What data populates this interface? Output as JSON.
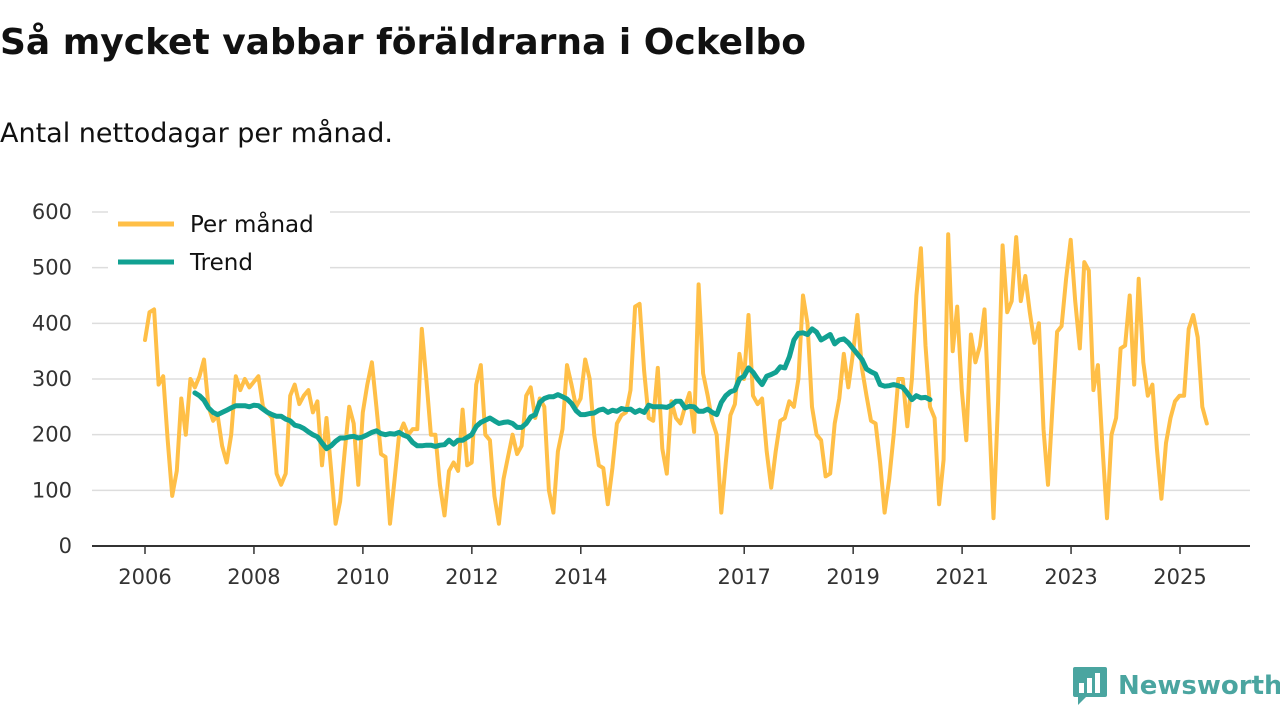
{
  "header": {
    "title": "Så mycket vabbar föräldrarna i Ockelbo",
    "subtitle": "Antal nettodagar per månad."
  },
  "brand": {
    "name": "Newsworthy",
    "logo_icon": "newsworthy-logo-icon",
    "color": "#4aa5a0"
  },
  "colors": {
    "monthly": "#ffbf47",
    "trend": "#11a192",
    "grid": "#dddddd",
    "axis": "#333333"
  },
  "chart_data": {
    "type": "line",
    "title": "Så mycket vabbar föräldrarna i Ockelbo",
    "subtitle": "Antal nettodagar per månad.",
    "xlabel": "",
    "ylabel": "",
    "ylim": [
      0,
      600
    ],
    "xlim": [
      2005.5,
      2026.2
    ],
    "grid": true,
    "legend_position": "top-left",
    "yticks": [
      0,
      100,
      200,
      300,
      400,
      500,
      600
    ],
    "xticks": [
      {
        "value": 2006,
        "label": "2006"
      },
      {
        "value": 2008,
        "label": "2008"
      },
      {
        "value": 2010,
        "label": "2010"
      },
      {
        "value": 2012,
        "label": "2012"
      },
      {
        "value": 2014,
        "label": "2014"
      },
      {
        "value": 2017,
        "label": "2017"
      },
      {
        "value": 2019,
        "label": "2019"
      },
      {
        "value": 2021,
        "label": "2021"
      },
      {
        "value": 2023,
        "label": "2023"
      },
      {
        "value": 2025,
        "label": "2025"
      }
    ],
    "series": [
      {
        "name": "Per månad",
        "color": "#ffbf47",
        "start": 2006,
        "step": 0.0833,
        "values": [
          370,
          420,
          425,
          290,
          305,
          190,
          90,
          135,
          265,
          200,
          300,
          285,
          305,
          335,
          250,
          225,
          235,
          180,
          150,
          200,
          305,
          280,
          300,
          285,
          295,
          305,
          250,
          240,
          230,
          130,
          110,
          130,
          270,
          290,
          255,
          270,
          280,
          240,
          260,
          145,
          230,
          140,
          40,
          80,
          170,
          250,
          220,
          110,
          240,
          290,
          330,
          250,
          165,
          160,
          40,
          120,
          200,
          220,
          200,
          210,
          210,
          390,
          300,
          200,
          200,
          110,
          55,
          135,
          150,
          135,
          245,
          145,
          150,
          290,
          325,
          200,
          190,
          90,
          40,
          120,
          160,
          200,
          165,
          180,
          270,
          285,
          230,
          265,
          250,
          100,
          60,
          170,
          210,
          325,
          290,
          250,
          265,
          335,
          300,
          200,
          145,
          140,
          75,
          140,
          220,
          235,
          240,
          280,
          430,
          435,
          315,
          230,
          225,
          320,
          175,
          130,
          260,
          230,
          220,
          250,
          275,
          205,
          470,
          310,
          270,
          225,
          200,
          60,
          150,
          235,
          255,
          345,
          300,
          415,
          270,
          255,
          265,
          170,
          105,
          170,
          225,
          230,
          260,
          250,
          300,
          450,
          400,
          250,
          200,
          190,
          125,
          130,
          220,
          265,
          345,
          285,
          345,
          415,
          320,
          270,
          225,
          220,
          150,
          60,
          120,
          200,
          300,
          300,
          215,
          300,
          450,
          535,
          360,
          250,
          230,
          75,
          155,
          560,
          350,
          430,
          280,
          190,
          380,
          330,
          360,
          425,
          240,
          50,
          260,
          540,
          420,
          440,
          555,
          440,
          485,
          420,
          365,
          400,
          210,
          110,
          250,
          385,
          395,
          480,
          550,
          440,
          355,
          510,
          495,
          280,
          325,
          180,
          50,
          200,
          230,
          355,
          360,
          450,
          290,
          480,
          330,
          270,
          290,
          175,
          85,
          185,
          230,
          260,
          270,
          270,
          390,
          415,
          375,
          250,
          220
        ]
      },
      {
        "name": "Trend",
        "color": "#11a192",
        "start": 2006.9167,
        "step": 0.0833,
        "values": [
          275,
          270,
          262,
          248,
          240,
          236,
          240,
          244,
          248,
          252,
          252,
          252,
          250,
          253,
          252,
          246,
          240,
          236,
          233,
          233,
          228,
          225,
          217,
          215,
          211,
          205,
          200,
          196,
          185,
          175,
          180,
          188,
          194,
          194,
          196,
          197,
          194,
          196,
          200,
          204,
          207,
          202,
          200,
          202,
          201,
          204,
          199,
          196,
          186,
          180,
          180,
          181,
          181,
          179,
          181,
          182,
          190,
          183,
          190,
          190,
          195,
          200,
          215,
          222,
          226,
          230,
          225,
          220,
          222,
          223,
          220,
          213,
          213,
          220,
          232,
          236,
          258,
          265,
          268,
          268,
          272,
          268,
          264,
          256,
          243,
          236,
          236,
          238,
          239,
          244,
          246,
          240,
          244,
          242,
          247,
          245,
          246,
          240,
          244,
          240,
          253,
          250,
          250,
          250,
          249,
          253,
          260,
          260,
          248,
          251,
          250,
          242,
          242,
          246,
          240,
          236,
          258,
          270,
          277,
          280,
          300,
          305,
          320,
          312,
          300,
          290,
          305,
          308,
          312,
          322,
          320,
          340,
          370,
          382,
          383,
          380,
          390,
          384,
          370,
          375,
          380,
          363,
          370,
          372,
          365,
          355,
          345,
          335,
          318,
          313,
          309,
          290,
          287,
          288,
          290,
          288,
          285,
          275,
          263,
          270,
          266,
          267,
          263
        ]
      }
    ]
  }
}
